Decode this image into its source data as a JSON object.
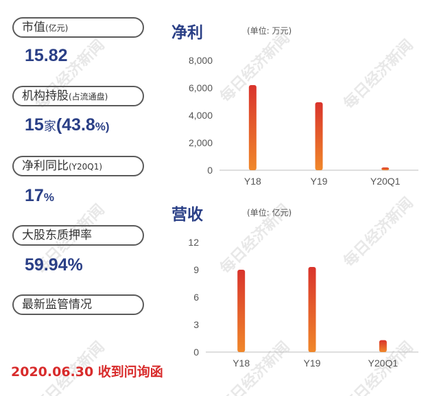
{
  "watermark_text": "每日经济新闻",
  "metrics": [
    {
      "label": "市值",
      "label_small": "(亿元)",
      "value": "15.82",
      "unit": ""
    },
    {
      "label": "机构持股",
      "label_small": "(占流通盘)",
      "value": "15",
      "unit_cn": "家",
      "value2": "(43.8",
      "unit2": "%)"
    },
    {
      "label": "净利同比",
      "label_small": "(Y20Q1)",
      "value": "17",
      "unit": "%"
    },
    {
      "label": "大股东质押率",
      "label_small": "",
      "value": "59.94%",
      "unit": ""
    },
    {
      "label": "最新监管情况",
      "label_small": ""
    }
  ],
  "footer_note": "2020.06.30 收到问询函",
  "colors": {
    "bar_top": "#d9342c",
    "bar_bottom": "#f0872a",
    "title": "#2a3f86",
    "note": "#d82b2b"
  },
  "chart_data": [
    {
      "type": "bar",
      "title": "净利",
      "unit_label": "(单位: 万元)",
      "categories": [
        "Y18",
        "Y19",
        "Y20Q1"
      ],
      "values": [
        6200,
        4950,
        200
      ],
      "ylim": [
        0,
        8000
      ],
      "yticks": [
        0,
        2000,
        4000,
        6000,
        8000
      ],
      "ytick_labels": [
        "0",
        "2,000",
        "4,000",
        "6,000",
        "8,000"
      ],
      "grid": false
    },
    {
      "type": "bar",
      "title": "营收",
      "unit_label": "(单位: 亿元)",
      "categories": [
        "Y18",
        "Y19",
        "Y20Q1"
      ],
      "values": [
        9.0,
        9.3,
        1.3
      ],
      "ylim": [
        0,
        12
      ],
      "yticks": [
        0,
        3,
        6,
        9,
        12
      ],
      "ytick_labels": [
        "0",
        "3",
        "6",
        "9",
        "12"
      ],
      "grid": false
    }
  ]
}
